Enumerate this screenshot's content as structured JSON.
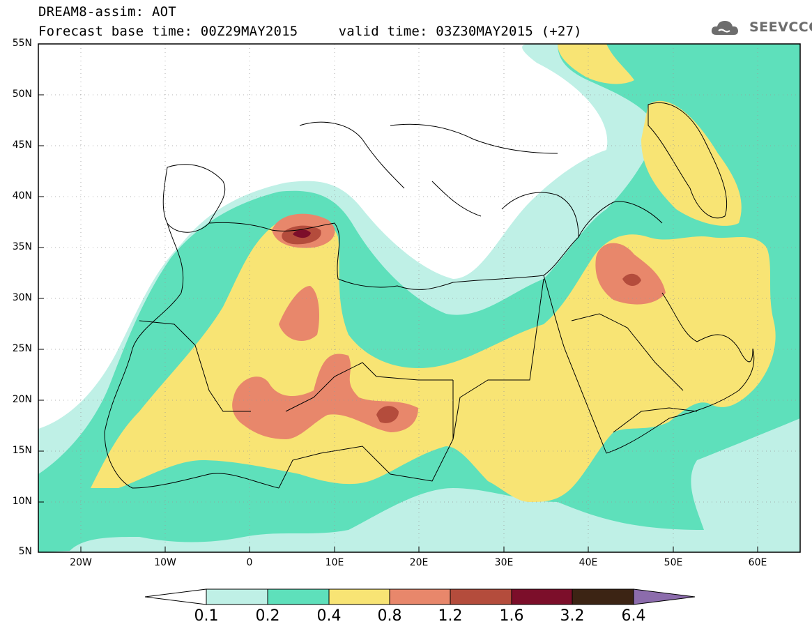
{
  "header": {
    "title_line1": "DREAM8-assim: AOT",
    "title_line2": "Forecast base time: 00Z29MAY2015     valid time: 03Z30MAY2015 (+27)",
    "logo_text": "SEEVCCC",
    "logo_icon": "cloud-icon"
  },
  "map": {
    "lat_labels": [
      "55N",
      "50N",
      "45N",
      "40N",
      "35N",
      "30N",
      "25N",
      "20N",
      "15N",
      "10N",
      "5N"
    ],
    "lon_labels": [
      "20W",
      "10W",
      "0",
      "10E",
      "20E",
      "30E",
      "40E",
      "50E",
      "60E"
    ],
    "extent": {
      "lon_min": -25,
      "lon_max": 65,
      "lat_min": 5,
      "lat_max": 55
    }
  },
  "colorbar": {
    "thresholds": [
      "0.1",
      "0.2",
      "0.4",
      "0.8",
      "1.2",
      "1.6",
      "3.2",
      "6.4"
    ],
    "colors": {
      "under": "#ffffff",
      "c1": "#bff0e6",
      "c2": "#5ee0bb",
      "c3": "#f8e474",
      "c4": "#e8876b",
      "c5": "#b44c3c",
      "c6": "#7c0e2a",
      "c7": "#3c2414",
      "over": "#8c6cac"
    }
  }
}
